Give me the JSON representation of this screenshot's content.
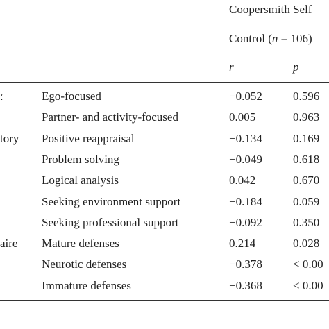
{
  "header": {
    "group": "Coopersmith Self",
    "subgroup": [
      "Control (",
      "n",
      " = 106)"
    ],
    "columns": [
      "r",
      "p"
    ]
  },
  "table": {
    "rows": [
      {
        "group": "ː",
        "label": "Ego-focused",
        "r": "−0.052",
        "p": "0.596"
      },
      {
        "label": "Partner- and activity-focused",
        "r": "0.005",
        "p": "0.963"
      },
      {
        "group": "tory",
        "label": "Positive reappraisal",
        "r": "−0.134",
        "p": "0.169"
      },
      {
        "label": "Problem solving",
        "r": "−0.049",
        "p": "0.618"
      },
      {
        "label": "Logical analysis",
        "r": "0.042",
        "p": "0.670"
      },
      {
        "label": "Seeking environment support",
        "r": "−0.184",
        "p": "0.059"
      },
      {
        "label": "Seeking professional support",
        "r": "−0.092",
        "p": "0.350"
      },
      {
        "group": "aire",
        "label": "Mature defenses",
        "r": "0.214",
        "p": "0.028"
      },
      {
        "label": "Neurotic defenses",
        "r": "−0.378",
        "p": "< 0.00"
      },
      {
        "label": "Immature defenses",
        "r": "−0.368",
        "p": "< 0.00"
      }
    ]
  }
}
